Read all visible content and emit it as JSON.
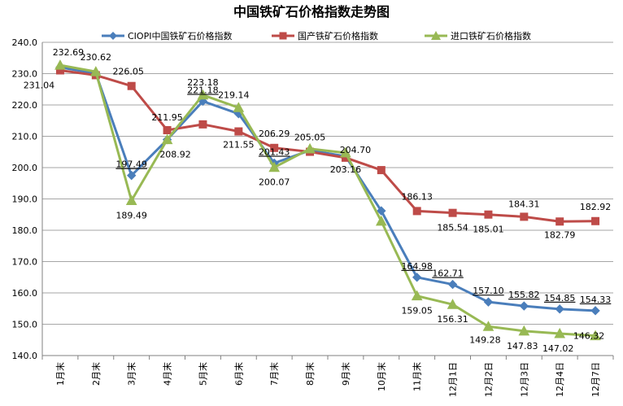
{
  "chart_data": {
    "type": "line",
    "title": "中国铁矿石价格指数走势图",
    "xlabel": "",
    "ylabel": "",
    "ylim": [
      140,
      240
    ],
    "yticks": [
      "140.0",
      "150.0",
      "160.0",
      "170.0",
      "180.0",
      "190.0",
      "200.0",
      "210.0",
      "220.0",
      "230.0",
      "240.0"
    ],
    "grid": true,
    "legend_position": "top",
    "categories": [
      "1月末",
      "2月末",
      "3月末",
      "4月末",
      "5月末",
      "6月末",
      "7月末",
      "8月末",
      "9月末",
      "10月末",
      "11月末",
      "12月1日",
      "12月2日",
      "12月3日",
      "12月4日",
      "12月7日"
    ],
    "series": [
      {
        "name": "CIOPI中国铁矿石价格指数",
        "color": "#4A7EBB",
        "marker": "diamond",
        "values": [
          232.0,
          230.1,
          197.49,
          208.92,
          221.18,
          217.2,
          201.43,
          205.5,
          203.6,
          186.2,
          164.98,
          162.71,
          157.1,
          155.82,
          154.85,
          154.33
        ],
        "labels": [
          "",
          "",
          "197.49",
          "",
          "221.18",
          "",
          "201.43",
          "",
          "",
          "",
          "164.98",
          "162.71",
          "157.10",
          "155.82",
          "154.85",
          "154.33"
        ]
      },
      {
        "name": "国产铁矿石价格指数",
        "color": "#BE4B48",
        "marker": "square",
        "values": [
          231.04,
          229.5,
          226.05,
          211.95,
          213.8,
          211.55,
          206.29,
          205.05,
          203.16,
          199.2,
          186.13,
          185.54,
          185.01,
          184.31,
          182.79,
          182.92
        ],
        "labels": [
          "231.04",
          "",
          "226.05",
          "211.95",
          "",
          "211.55",
          "206.29",
          "205.05",
          "203.16",
          "",
          "186.13",
          "185.54",
          "185.01",
          "184.31",
          "182.79",
          "182.92"
        ]
      },
      {
        "name": "进口铁矿石价格指数",
        "color": "#98B954",
        "marker": "triangle",
        "values": [
          232.69,
          230.62,
          189.49,
          208.92,
          223.18,
          219.14,
          200.07,
          206.0,
          204.7,
          182.9,
          159.05,
          156.31,
          149.28,
          147.83,
          147.02,
          146.32
        ],
        "labels": [
          "232.69",
          "230.62",
          "189.49",
          "208.92",
          "223.18",
          "219.14",
          "200.07",
          "",
          "204.70",
          "",
          "159.05",
          "156.31",
          "149.28",
          "147.83",
          "147.02",
          "146.32"
        ]
      }
    ]
  }
}
